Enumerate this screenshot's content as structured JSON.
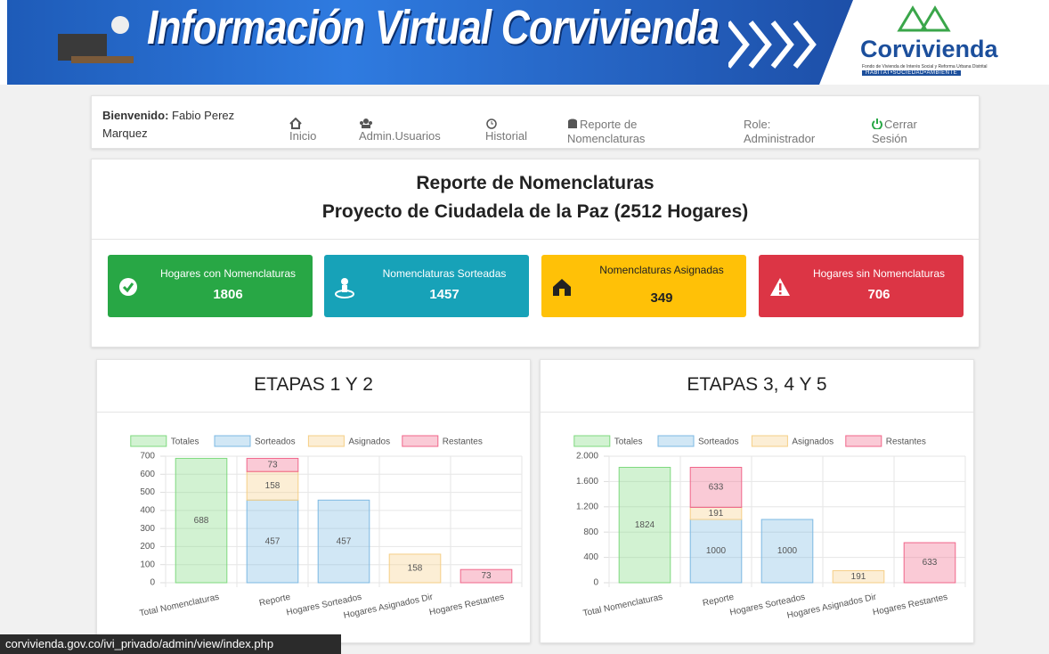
{
  "header": {
    "title": "Información Virtual Corvivienda",
    "logo": "Corvivienda",
    "logo_subtitle": "Fondo de Vivienda de Interés Social y Reforma Urbana Distrital",
    "tagline": "HÁBITAT•SOCIEDAD•AMBIENTE"
  },
  "nav": {
    "welcome_label": "Bienvenido:",
    "user": "Fabio Perez Marquez",
    "items": [
      "Inicio",
      "Admin.Usuarios",
      "Historial",
      "Reporte de Nomenclaturas",
      "Role: Administrador",
      "Cerrar Sesión"
    ]
  },
  "report": {
    "title": "Reporte de Nomenclaturas",
    "subtitle": "Proyecto de Ciudadela de la Paz (2512 Hogares)",
    "cards": [
      {
        "label": "Hogares con Nomenclaturas",
        "value": 1806,
        "color": "#28a745"
      },
      {
        "label": "Nomenclaturas Sorteadas",
        "value": 1457,
        "color": "#17a2b8"
      },
      {
        "label": "Nomenclaturas Asignadas",
        "value": 349,
        "color": "#ffc107"
      },
      {
        "label": "Hogares sin Nomenclaturas",
        "value": 706,
        "color": "#dc3545"
      }
    ]
  },
  "chart_data": [
    {
      "type": "bar",
      "title": "ETAPAS 1 Y 2",
      "stacked": true,
      "grid": true,
      "legend": "top",
      "categories": [
        "Total Nomenclaturas",
        "Reporte",
        "Hogares Sorteados",
        "Hogares Asignados Dir",
        "Hogares Restantes"
      ],
      "series": [
        {
          "name": "Totales",
          "color": "#7fd97f",
          "values": [
            688,
            null,
            null,
            null,
            null
          ]
        },
        {
          "name": "Sorteados",
          "color": "#7cb9e3",
          "values": [
            null,
            457,
            457,
            null,
            null
          ]
        },
        {
          "name": "Asignados",
          "color": "#f5cf86",
          "values": [
            null,
            158,
            null,
            158,
            null
          ]
        },
        {
          "name": "Restantes",
          "color": "#f0668a",
          "values": [
            null,
            73,
            null,
            null,
            73
          ]
        }
      ],
      "ylim": [
        0,
        700
      ],
      "yticks": [
        0,
        100,
        200,
        300,
        400,
        500,
        600,
        700
      ]
    },
    {
      "type": "bar",
      "title": "ETAPAS 3, 4 Y 5",
      "stacked": true,
      "grid": true,
      "legend": "top",
      "categories": [
        "Total Nomenclaturas",
        "Reporte",
        "Hogares Sorteados",
        "Hogares Asignados Dir",
        "Hogares Restantes"
      ],
      "series": [
        {
          "name": "Totales",
          "color": "#7fd97f",
          "values": [
            1824,
            null,
            null,
            null,
            null
          ]
        },
        {
          "name": "Sorteados",
          "color": "#7cb9e3",
          "values": [
            null,
            1000,
            1000,
            null,
            null
          ]
        },
        {
          "name": "Asignados",
          "color": "#f5cf86",
          "values": [
            null,
            191,
            null,
            191,
            null
          ]
        },
        {
          "name": "Restantes",
          "color": "#f0668a",
          "values": [
            null,
            633,
            null,
            null,
            633
          ]
        }
      ],
      "ylim": [
        0,
        2000
      ],
      "yticks": [
        0,
        400,
        800,
        {
          "value": 1200,
          "label": "1.200"
        },
        {
          "value": 1600,
          "label": "1.600"
        },
        {
          "value": 2000,
          "label": "2.000"
        }
      ]
    }
  ],
  "status_bar": {
    "url": "corvivienda.gov.co/ivi_privado/admin/view/index.php"
  }
}
